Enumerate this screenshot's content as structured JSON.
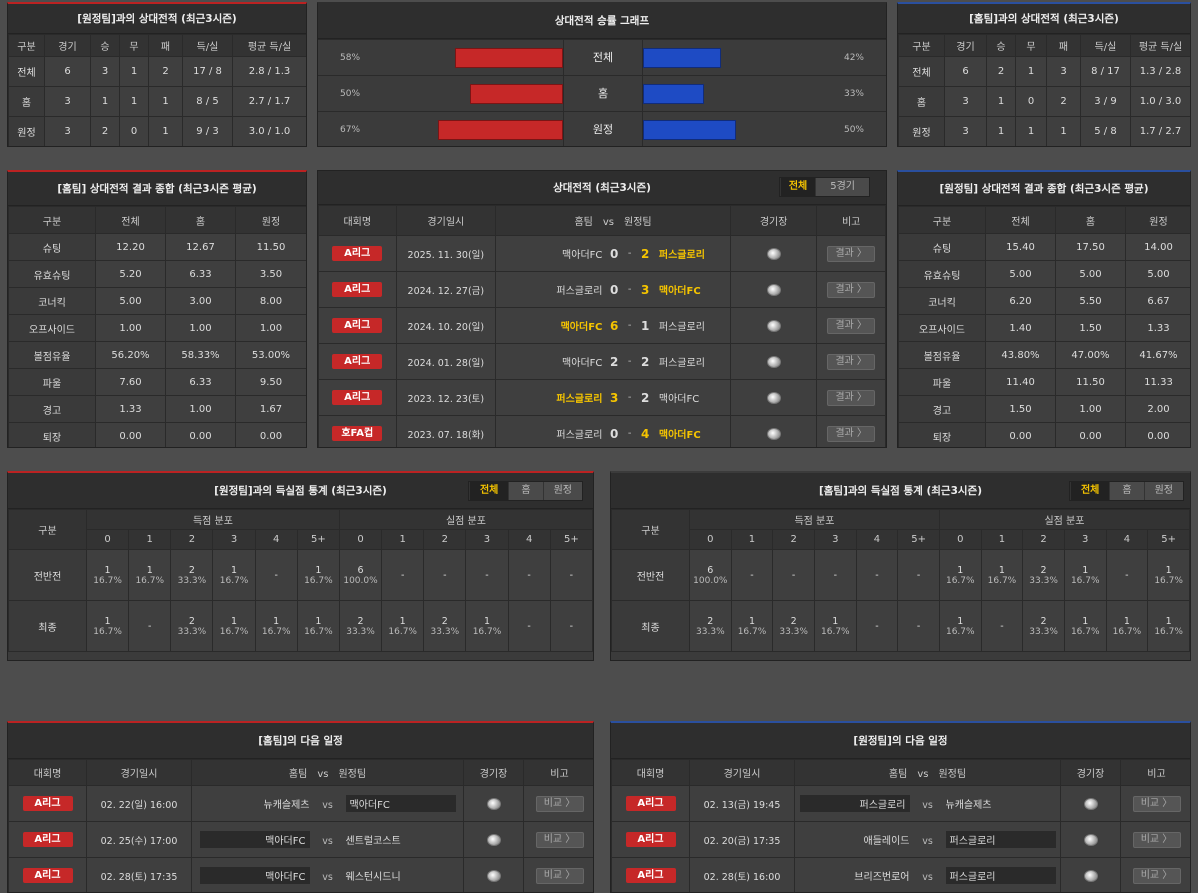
{
  "home_h2h": {
    "title": "[원정팀]과의 상대전적 (최근3시즌)",
    "headers": [
      "구분",
      "경기",
      "승",
      "무",
      "패",
      "득/실",
      "평균 득/실"
    ],
    "rows": [
      [
        "전체",
        "6",
        "3",
        "1",
        "2",
        "17 / 8",
        "2.8 / 1.3"
      ],
      [
        "홈",
        "3",
        "1",
        "1",
        "1",
        "8 / 5",
        "2.7 / 1.7"
      ],
      [
        "원정",
        "3",
        "2",
        "0",
        "1",
        "9 / 3",
        "3.0 / 1.0"
      ]
    ]
  },
  "graph": {
    "title": "상대전적 승률 그래프",
    "colors": {
      "home": "#c62828",
      "away": "#1e4bc4"
    },
    "rows": [
      {
        "label": "전체",
        "left": "58%",
        "right": "42%",
        "l": 58,
        "r": 42
      },
      {
        "label": "홈",
        "left": "50%",
        "right": "33%",
        "l": 50,
        "r": 33
      },
      {
        "label": "원정",
        "left": "67%",
        "right": "50%",
        "l": 67,
        "r": 50
      }
    ]
  },
  "away_h2h": {
    "title": "[홈팀]과의 상대전적 (최근3시즌)",
    "headers": [
      "구분",
      "경기",
      "승",
      "무",
      "패",
      "득/실",
      "평균 득/실"
    ],
    "rows": [
      [
        "전체",
        "6",
        "2",
        "1",
        "3",
        "8 / 17",
        "1.3 / 2.8"
      ],
      [
        "홈",
        "3",
        "1",
        "0",
        "2",
        "3 / 9",
        "1.0 / 3.0"
      ],
      [
        "원정",
        "3",
        "1",
        "1",
        "1",
        "5 / 8",
        "1.7 / 2.7"
      ]
    ]
  },
  "home_summary": {
    "title": "[홈팀] 상대전적 결과 종합 (최근3시즌 평균)",
    "headers": [
      "구분",
      "전체",
      "홈",
      "원정"
    ],
    "rows": [
      [
        "슈팅",
        "12.20",
        "12.67",
        "11.50"
      ],
      [
        "유효슈팅",
        "5.20",
        "6.33",
        "3.50"
      ],
      [
        "코너킥",
        "5.00",
        "3.00",
        "8.00"
      ],
      [
        "오프사이드",
        "1.00",
        "1.00",
        "1.00"
      ],
      [
        "볼점유율",
        "56.20%",
        "58.33%",
        "53.00%"
      ],
      [
        "파울",
        "7.60",
        "6.33",
        "9.50"
      ],
      [
        "경고",
        "1.33",
        "1.00",
        "1.67"
      ],
      [
        "퇴장",
        "0.00",
        "0.00",
        "0.00"
      ]
    ]
  },
  "away_summary": {
    "title": "[원정팀] 상대전적 결과 종합 (최근3시즌 평균)",
    "headers": [
      "구분",
      "전체",
      "홈",
      "원정"
    ],
    "rows": [
      [
        "슈팅",
        "15.40",
        "17.50",
        "14.00"
      ],
      [
        "유효슈팅",
        "5.00",
        "5.00",
        "5.00"
      ],
      [
        "코너킥",
        "6.20",
        "5.50",
        "6.67"
      ],
      [
        "오프사이드",
        "1.40",
        "1.50",
        "1.33"
      ],
      [
        "볼점유율",
        "43.80%",
        "47.00%",
        "41.67%"
      ],
      [
        "파울",
        "11.40",
        "11.50",
        "11.33"
      ],
      [
        "경고",
        "1.50",
        "1.00",
        "2.00"
      ],
      [
        "퇴장",
        "0.00",
        "0.00",
        "0.00"
      ]
    ]
  },
  "matches": {
    "title": "상대전적 (최근3시즌)",
    "tabs": [
      "전체",
      "5경기"
    ],
    "headers": {
      "league": "대회명",
      "date": "경기일시",
      "home": "홈팀",
      "vs": "vs",
      "away": "원정팀",
      "stadium": "경기장",
      "note": "비고"
    },
    "result_label": "결과 〉",
    "rows": [
      {
        "league": "A리그",
        "date": "2025. 11. 30(일)",
        "home": "맥아더FC",
        "hs": "0",
        "as": "2",
        "away": "퍼스글로리",
        "win": "away"
      },
      {
        "league": "A리그",
        "date": "2024. 12. 27(금)",
        "home": "퍼스글로리",
        "hs": "0",
        "as": "3",
        "away": "맥아더FC",
        "win": "away"
      },
      {
        "league": "A리그",
        "date": "2024. 10. 20(일)",
        "home": "맥아더FC",
        "hs": "6",
        "as": "1",
        "away": "퍼스글로리",
        "win": "home"
      },
      {
        "league": "A리그",
        "date": "2024. 01. 28(일)",
        "home": "맥아더FC",
        "hs": "2",
        "as": "2",
        "away": "퍼스글로리",
        "win": "none"
      },
      {
        "league": "A리그",
        "date": "2023. 12. 23(토)",
        "home": "퍼스글로리",
        "hs": "3",
        "as": "2",
        "away": "맥아더FC",
        "win": "home"
      },
      {
        "league": "호FA컵",
        "date": "2023. 07. 18(화)",
        "home": "퍼스글로리",
        "hs": "0",
        "as": "4",
        "away": "맥아더FC",
        "win": "away"
      }
    ]
  },
  "home_goals": {
    "title": "[원정팀]과의 득실점 통계 (최근3시즌)",
    "tabs": [
      "전체",
      "홈",
      "원정"
    ],
    "col_label": "구분",
    "scored_label": "득점 분포",
    "conceded_label": "실점 분포",
    "buckets": [
      "0",
      "1",
      "2",
      "3",
      "4",
      "5+"
    ],
    "rows": [
      {
        "label": "전반전",
        "cells": [
          [
            "1",
            "16.7%"
          ],
          [
            "1",
            "16.7%"
          ],
          [
            "2",
            "33.3%"
          ],
          [
            "1",
            "16.7%"
          ],
          [
            "-",
            ""
          ],
          [
            "1",
            "16.7%"
          ],
          [
            "6",
            "100.0%"
          ],
          [
            "-",
            ""
          ],
          [
            "-",
            ""
          ],
          [
            "-",
            ""
          ],
          [
            "-",
            ""
          ],
          [
            "-",
            ""
          ]
        ]
      },
      {
        "label": "최종",
        "cells": [
          [
            "1",
            "16.7%"
          ],
          [
            "-",
            ""
          ],
          [
            "2",
            "33.3%"
          ],
          [
            "1",
            "16.7%"
          ],
          [
            "1",
            "16.7%"
          ],
          [
            "1",
            "16.7%"
          ],
          [
            "2",
            "33.3%"
          ],
          [
            "1",
            "16.7%"
          ],
          [
            "2",
            "33.3%"
          ],
          [
            "1",
            "16.7%"
          ],
          [
            "-",
            ""
          ],
          [
            "-",
            ""
          ]
        ]
      }
    ]
  },
  "away_goals": {
    "title": "[홈팀]과의 득실점 통계 (최근3시즌)",
    "tabs": [
      "전체",
      "홈",
      "원정"
    ],
    "col_label": "구분",
    "scored_label": "득점 분포",
    "conceded_label": "실점 분포",
    "buckets": [
      "0",
      "1",
      "2",
      "3",
      "4",
      "5+"
    ],
    "rows": [
      {
        "label": "전반전",
        "cells": [
          [
            "6",
            "100.0%"
          ],
          [
            "-",
            ""
          ],
          [
            "-",
            ""
          ],
          [
            "-",
            ""
          ],
          [
            "-",
            ""
          ],
          [
            "-",
            ""
          ],
          [
            "1",
            "16.7%"
          ],
          [
            "1",
            "16.7%"
          ],
          [
            "2",
            "33.3%"
          ],
          [
            "1",
            "16.7%"
          ],
          [
            "-",
            ""
          ],
          [
            "1",
            "16.7%"
          ]
        ]
      },
      {
        "label": "최종",
        "cells": [
          [
            "2",
            "33.3%"
          ],
          [
            "1",
            "16.7%"
          ],
          [
            "2",
            "33.3%"
          ],
          [
            "1",
            "16.7%"
          ],
          [
            "-",
            ""
          ],
          [
            "-",
            ""
          ],
          [
            "1",
            "16.7%"
          ],
          [
            "-",
            ""
          ],
          [
            "2",
            "33.3%"
          ],
          [
            "1",
            "16.7%"
          ],
          [
            "1",
            "16.7%"
          ],
          [
            "1",
            "16.7%"
          ]
        ]
      }
    ]
  },
  "home_next": {
    "title": "[홈팀]의 다음 일정",
    "headers": {
      "league": "대회명",
      "date": "경기일시",
      "home": "홈팀",
      "vs": "vs",
      "away": "원정팀",
      "stadium": "경기장",
      "note": "비고"
    },
    "btn": "비교 〉",
    "rows": [
      {
        "league": "A리그",
        "date": "02. 22(일) 16:00",
        "home": "뉴캐슬제츠",
        "away": "맥아더FC",
        "box": "away"
      },
      {
        "league": "A리그",
        "date": "02. 25(수) 17:00",
        "home": "맥아더FC",
        "away": "센트럴코스트",
        "box": "home"
      },
      {
        "league": "A리그",
        "date": "02. 28(토) 17:35",
        "home": "맥아더FC",
        "away": "웨스턴시드니",
        "box": "home"
      }
    ]
  },
  "away_next": {
    "title": "[원정팀]의 다음 일정",
    "headers": {
      "league": "대회명",
      "date": "경기일시",
      "home": "홈팀",
      "vs": "vs",
      "away": "원정팀",
      "stadium": "경기장",
      "note": "비고"
    },
    "btn": "비교 〉",
    "rows": [
      {
        "league": "A리그",
        "date": "02. 13(금) 19:45",
        "home": "퍼스글로리",
        "away": "뉴캐슬제츠",
        "box": "home"
      },
      {
        "league": "A리그",
        "date": "02. 20(금) 17:35",
        "home": "애들레이드",
        "away": "퍼스글로리",
        "box": "away"
      },
      {
        "league": "A리그",
        "date": "02. 28(토) 16:00",
        "home": "브리즈번로어",
        "away": "퍼스글로리",
        "box": "away"
      }
    ]
  }
}
